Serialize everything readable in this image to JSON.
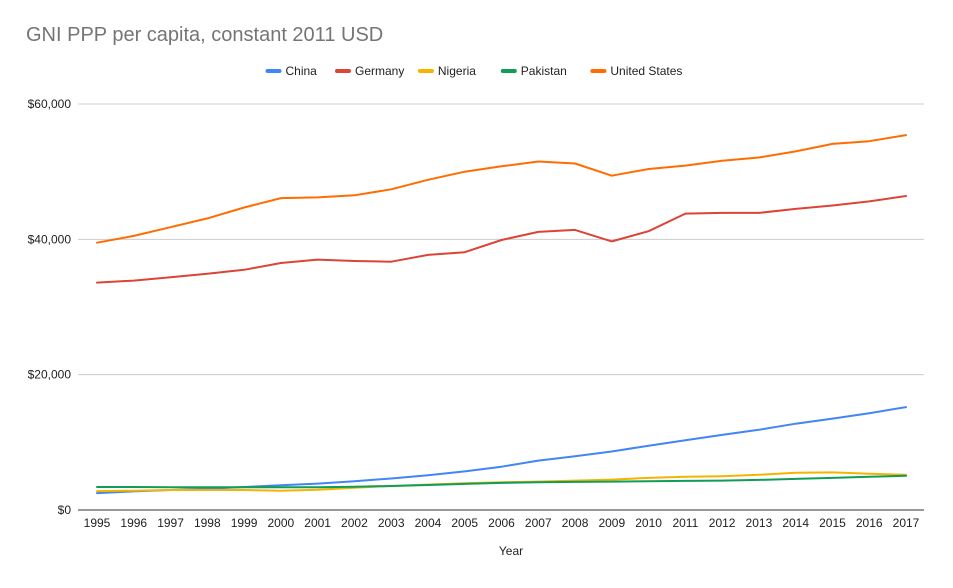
{
  "chart_data": {
    "type": "line",
    "title": "GNI PPP per capita, constant 2011 USD",
    "xlabel": "Year",
    "ylabel": "",
    "ylim": [
      0,
      60000
    ],
    "yticks": [
      {
        "value": 0,
        "label": "$0"
      },
      {
        "value": 20000,
        "label": "$20,000"
      },
      {
        "value": 40000,
        "label": "$40,000"
      },
      {
        "value": 60000,
        "label": "$60,000"
      }
    ],
    "grid": true,
    "legend_position": "top",
    "categories": [
      "1995",
      "1996",
      "1997",
      "1998",
      "1999",
      "2000",
      "2001",
      "2002",
      "2003",
      "2004",
      "2005",
      "2006",
      "2007",
      "2008",
      "2009",
      "2010",
      "2011",
      "2012",
      "2013",
      "2014",
      "2015",
      "2016",
      "2017"
    ],
    "series": [
      {
        "name": "China",
        "color": "#4285f4",
        "values": [
          2500,
          2750,
          2950,
          3150,
          3400,
          3650,
          3900,
          4250,
          4650,
          5150,
          5700,
          6400,
          7300,
          7950,
          8650,
          9500,
          10300,
          11100,
          11850,
          12750,
          13500,
          14300,
          15200
        ]
      },
      {
        "name": "Germany",
        "color": "#db4437",
        "values": [
          33600,
          33900,
          34400,
          34900,
          35500,
          36500,
          37000,
          36800,
          36700,
          37700,
          38100,
          39900,
          41100,
          41400,
          39700,
          41200,
          43800,
          43900,
          43900,
          44500,
          45000,
          45600,
          46400
        ]
      },
      {
        "name": "Nigeria",
        "color": "#f4b400",
        "values": [
          2800,
          2850,
          2950,
          2950,
          2950,
          2850,
          3000,
          3300,
          3550,
          3750,
          3950,
          4100,
          4200,
          4350,
          4500,
          4750,
          4900,
          5000,
          5200,
          5500,
          5550,
          5350,
          5200
        ]
      },
      {
        "name": "Pakistan",
        "color": "#0f9d58",
        "values": [
          3400,
          3400,
          3350,
          3350,
          3350,
          3350,
          3350,
          3450,
          3550,
          3700,
          3850,
          4000,
          4100,
          4150,
          4200,
          4250,
          4300,
          4350,
          4450,
          4600,
          4750,
          4900,
          5050
        ]
      },
      {
        "name": "United States",
        "color": "#ff6d01",
        "values": [
          39500,
          40500,
          41800,
          43100,
          44700,
          46100,
          46200,
          46500,
          47400,
          48800,
          50000,
          50800,
          51500,
          51200,
          49400,
          50400,
          50900,
          51600,
          52100,
          53000,
          54100,
          54500,
          55400
        ]
      }
    ]
  }
}
